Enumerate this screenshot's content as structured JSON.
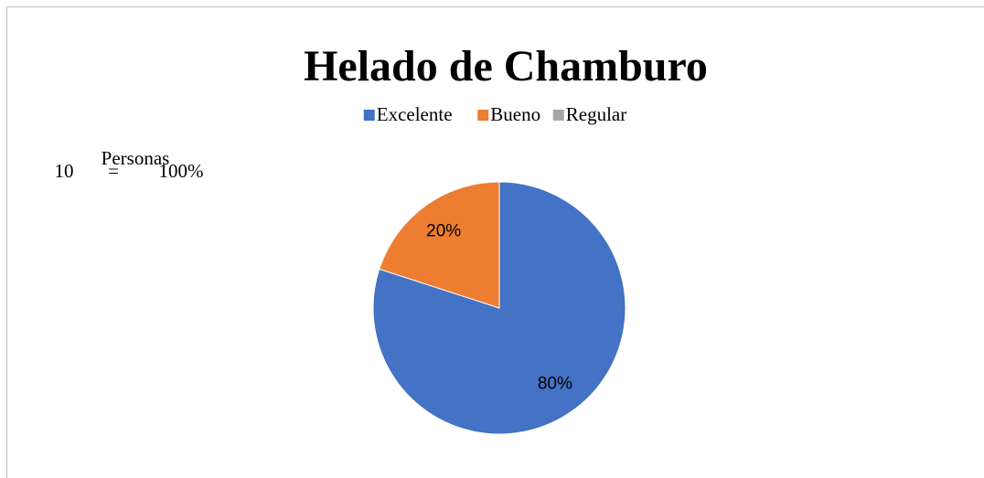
{
  "chart_data": {
    "type": "pie",
    "title": "Helado de Chamburo",
    "categories": [
      "Excelente",
      "Bueno",
      "Regular"
    ],
    "values": [
      80,
      20,
      0
    ],
    "value_labels": [
      "80%",
      "20%",
      null
    ],
    "colors": [
      "#4472c4",
      "#ed7d31",
      "#a5a5a5"
    ],
    "legend": "top",
    "annotation": [
      "Personas",
      "10",
      "=",
      "100%"
    ]
  }
}
